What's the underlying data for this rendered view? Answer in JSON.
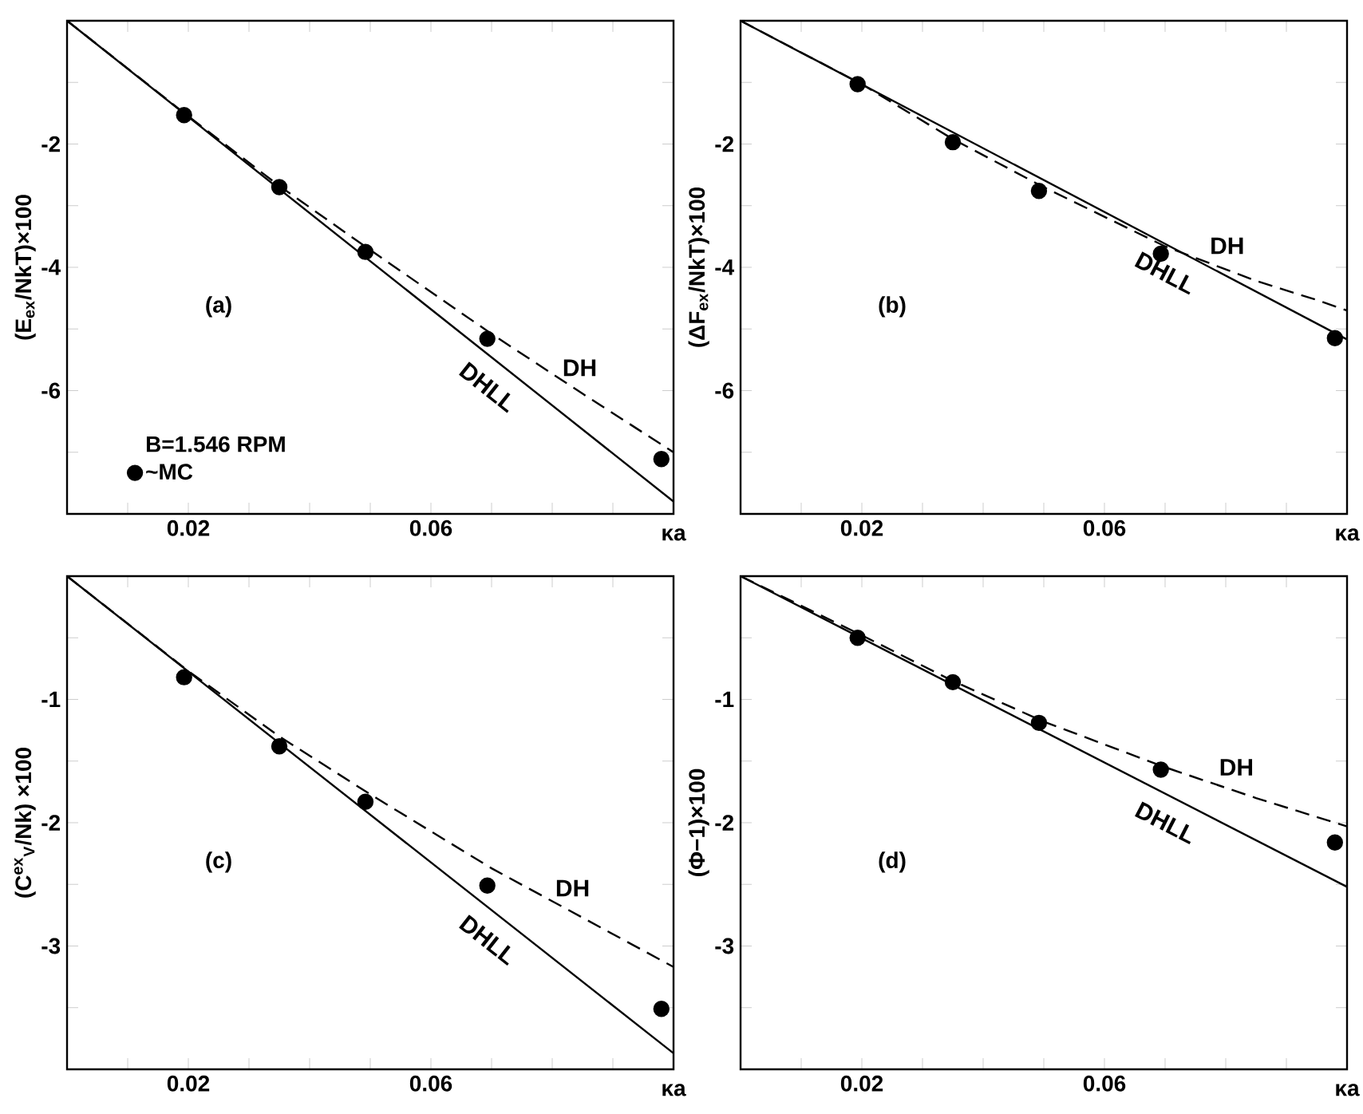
{
  "chart_data": [
    {
      "type": "line",
      "ylabel": "(E$_{ex}$/NkT)×100",
      "xlabel": "κa",
      "annotations": [
        "(a)"
      ],
      "legend_title": "B=1.546 RPM",
      "legend": "bottom left",
      "xlim": [
        0,
        0.1
      ],
      "ylim": [
        -8,
        0
      ],
      "xticks": [
        {
          "value": 0.01,
          "label": null
        },
        {
          "value": 0.02,
          "label": "0.02"
        },
        {
          "value": 0.03,
          "label": null
        },
        {
          "value": 0.04,
          "label": null
        },
        {
          "value": 0.05,
          "label": null
        },
        {
          "value": 0.06,
          "label": "0.06"
        },
        {
          "value": 0.07,
          "label": null
        },
        {
          "value": 0.08,
          "label": null
        },
        {
          "value": 0.09,
          "label": null
        }
      ],
      "yticks": [
        {
          "value": -1,
          "label": null
        },
        -2,
        {
          "value": -3,
          "label": null
        },
        -4,
        {
          "value": -5,
          "label": null
        },
        -6,
        {
          "value": -7,
          "label": null
        }
      ],
      "series": [
        {
          "name": "DHLL",
          "type": "line",
          "color": "#000000",
          "line_style": "solid",
          "x": [
            0,
            0.1
          ],
          "values": [
            0,
            -7.8
          ]
        },
        {
          "name": "DH",
          "type": "line",
          "color": "#000000",
          "line_style": "dashed",
          "x": [
            0,
            0.02,
            0.035,
            0.05,
            0.07,
            0.085,
            0.1
          ],
          "values": [
            0,
            -1.55,
            -2.68,
            -3.72,
            -5.08,
            -6.05,
            -7.0
          ]
        },
        {
          "name": "~MC",
          "type": "scatter",
          "color": "#000000",
          "marker": "circle",
          "x": [
            0.0193,
            0.035,
            0.0492,
            0.0693,
            0.098
          ],
          "values": [
            -1.53,
            -2.7,
            -3.75,
            -5.16,
            -7.11
          ]
        }
      ]
    },
    {
      "type": "line",
      "ylabel": "(ΔF$_{ex}$/NkT)×100",
      "xlabel": "κa",
      "annotations": [
        "(b)"
      ],
      "xlim": [
        0,
        0.1
      ],
      "ylim": [
        -8,
        0
      ],
      "xticks": [
        {
          "value": 0.01,
          "label": null
        },
        {
          "value": 0.02,
          "label": "0.02"
        },
        {
          "value": 0.03,
          "label": null
        },
        {
          "value": 0.04,
          "label": null
        },
        {
          "value": 0.05,
          "label": null
        },
        {
          "value": 0.06,
          "label": "0.06"
        },
        {
          "value": 0.07,
          "label": null
        },
        {
          "value": 0.08,
          "label": null
        },
        {
          "value": 0.09,
          "label": null
        }
      ],
      "yticks": [
        {
          "value": -1,
          "label": null
        },
        -2,
        {
          "value": -3,
          "label": null
        },
        -4,
        {
          "value": -5,
          "label": null
        },
        -6,
        {
          "value": -7,
          "label": null
        }
      ],
      "series": [
        {
          "name": "DHLL",
          "type": "line",
          "color": "#000000",
          "line_style": "solid",
          "x": [
            0,
            0.1
          ],
          "values": [
            0,
            -5.17
          ]
        },
        {
          "name": "DH",
          "type": "line",
          "color": "#000000",
          "line_style": "dashed",
          "x": [
            0,
            0.02,
            0.035,
            0.05,
            0.07,
            0.085,
            0.095,
            0.1
          ],
          "values": [
            0,
            -1.03,
            -1.92,
            -2.7,
            -3.66,
            -4.22,
            -4.53,
            -4.7
          ]
        },
        {
          "type": "scatter",
          "color": "#000000",
          "marker": "circle",
          "x": [
            0.0193,
            0.035,
            0.0492,
            0.0693,
            0.098
          ],
          "values": [
            -1.03,
            -1.97,
            -2.76,
            -3.78,
            -5.15
          ]
        }
      ]
    },
    {
      "type": "line",
      "ylabel": "(C$^{ex}$$_{V}$/Nk) ×100",
      "xlabel": "κa",
      "annotations": [
        "(c)"
      ],
      "xlim": [
        0,
        0.1
      ],
      "ylim": [
        -4,
        0
      ],
      "xticks": [
        {
          "value": 0.01,
          "label": null
        },
        {
          "value": 0.02,
          "label": "0.02"
        },
        {
          "value": 0.03,
          "label": null
        },
        {
          "value": 0.04,
          "label": null
        },
        {
          "value": 0.05,
          "label": null
        },
        {
          "value": 0.06,
          "label": "0.06"
        },
        {
          "value": 0.07,
          "label": null
        },
        {
          "value": 0.08,
          "label": null
        },
        {
          "value": 0.09,
          "label": null
        }
      ],
      "yticks": [
        {
          "value": -0.5,
          "label": null
        },
        -1,
        {
          "value": -1.5,
          "label": null
        },
        -2,
        {
          "value": -2.5,
          "label": null
        },
        -3,
        {
          "value": -3.5,
          "label": null
        }
      ],
      "series": [
        {
          "name": "DHLL",
          "type": "line",
          "color": "#000000",
          "line_style": "solid",
          "x": [
            0,
            0.1
          ],
          "values": [
            0,
            -3.87
          ]
        },
        {
          "name": "DH",
          "type": "line",
          "color": "#000000",
          "line_style": "dashed",
          "x": [
            0,
            0.02,
            0.035,
            0.05,
            0.07,
            0.085,
            0.1
          ],
          "values": [
            0,
            -0.77,
            -1.3,
            -1.77,
            -2.37,
            -2.77,
            -3.17
          ]
        },
        {
          "type": "scatter",
          "color": "#000000",
          "marker": "circle",
          "x": [
            0.0193,
            0.035,
            0.0492,
            0.0693,
            0.098
          ],
          "values": [
            -0.82,
            -1.38,
            -1.83,
            -2.51,
            -3.51
          ]
        }
      ]
    },
    {
      "type": "line",
      "ylabel": "(Φ−1)×100",
      "xlabel": "κa",
      "annotations": [
        "(d)"
      ],
      "xlim": [
        0,
        0.1
      ],
      "ylim": [
        -4,
        0
      ],
      "xticks": [
        {
          "value": 0.01,
          "label": null
        },
        {
          "value": 0.02,
          "label": "0.02"
        },
        {
          "value": 0.03,
          "label": null
        },
        {
          "value": 0.04,
          "label": null
        },
        {
          "value": 0.05,
          "label": null
        },
        {
          "value": 0.06,
          "label": "0.06"
        },
        {
          "value": 0.07,
          "label": null
        },
        {
          "value": 0.08,
          "label": null
        },
        {
          "value": 0.09,
          "label": null
        }
      ],
      "yticks": [
        {
          "value": -0.5,
          "label": null
        },
        -1,
        {
          "value": -1.5,
          "label": null
        },
        -2,
        {
          "value": -2.5,
          "label": null
        },
        -3,
        {
          "value": -3.5,
          "label": null
        }
      ],
      "series": [
        {
          "name": "DHLL",
          "type": "line",
          "color": "#000000",
          "line_style": "solid",
          "x": [
            0,
            0.1
          ],
          "values": [
            0,
            -2.52
          ]
        },
        {
          "name": "DH",
          "type": "line",
          "color": "#000000",
          "line_style": "dashed",
          "x": [
            0,
            0.02,
            0.035,
            0.05,
            0.07,
            0.085,
            0.1
          ],
          "values": [
            0,
            -0.48,
            -0.85,
            -1.18,
            -1.55,
            -1.8,
            -2.03
          ]
        },
        {
          "type": "scatter",
          "color": "#000000",
          "marker": "circle",
          "x": [
            0.0193,
            0.035,
            0.0492,
            0.0693,
            0.098
          ],
          "values": [
            -0.5,
            -0.86,
            -1.19,
            -1.57,
            -2.16
          ]
        }
      ]
    }
  ]
}
